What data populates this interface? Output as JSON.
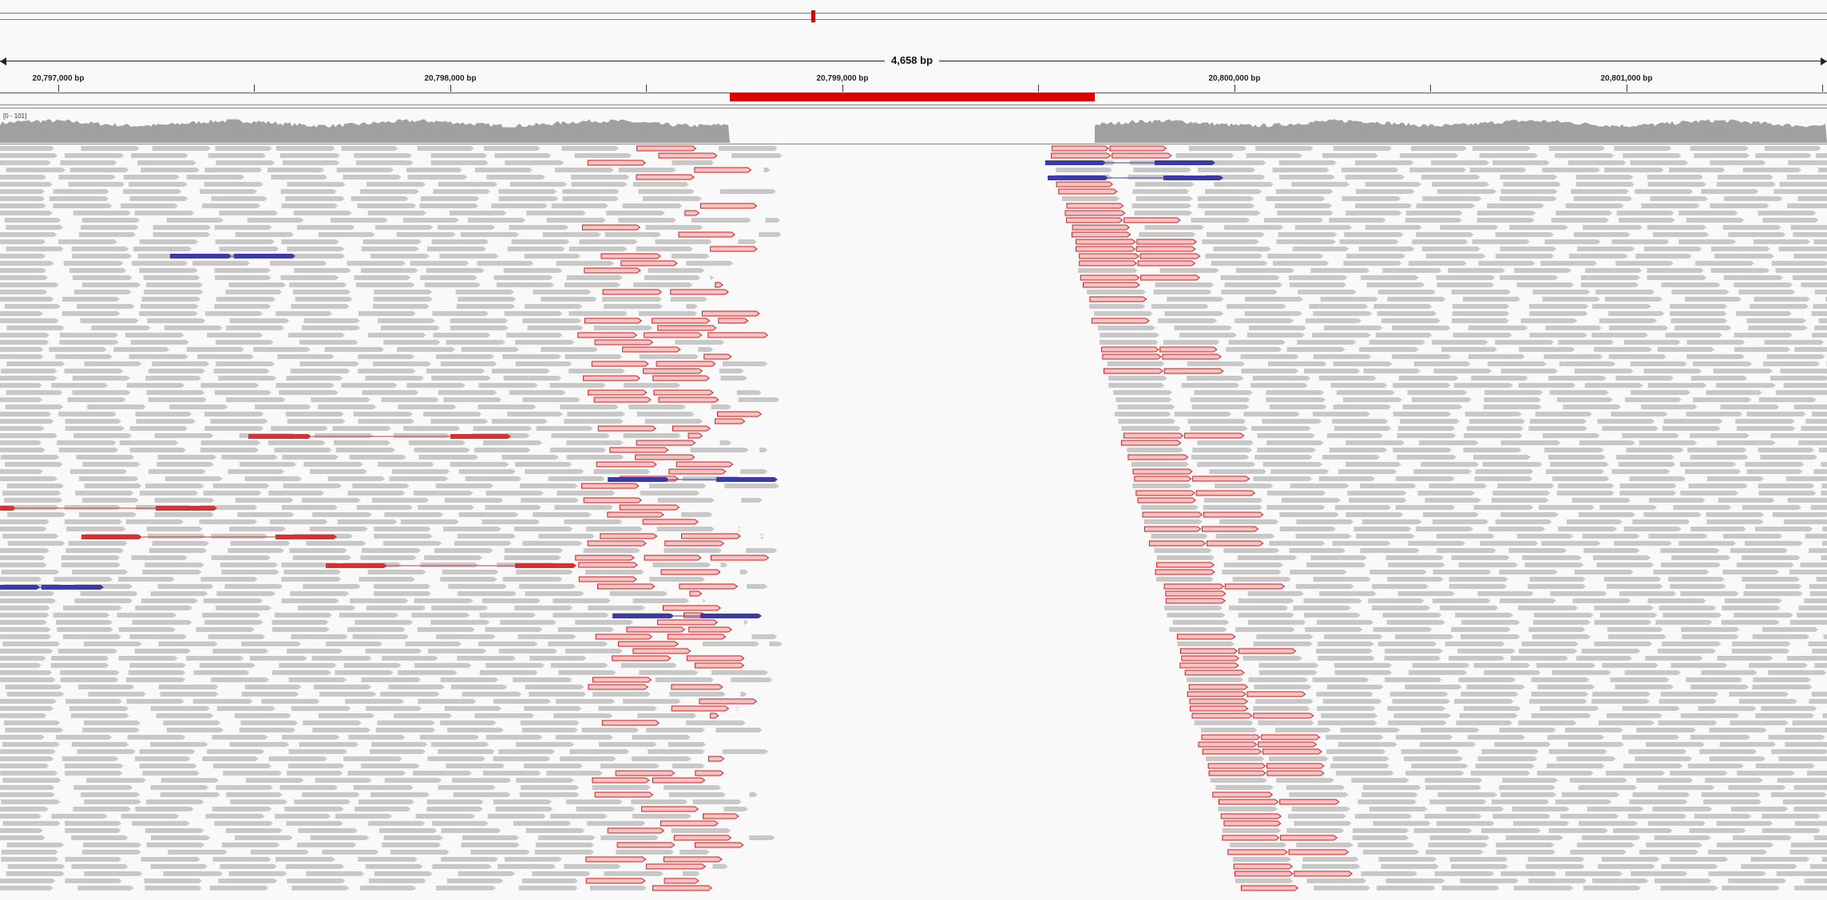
{
  "locus": {
    "span_label": "4,658 bp"
  },
  "ruler": {
    "labels": [
      "20,797,000 bp",
      "20,798,000 bp",
      "20,799,000 bp",
      "20,800,000 bp",
      "20,801,000 bp"
    ]
  },
  "coverage": {
    "range_label": "[0 - 101]"
  },
  "colors": {
    "read_default": "#c8c8c8",
    "read_insert_large": "#d03535",
    "read_inversion": "#3a3aa8",
    "soft_clip": "#ff66cc",
    "region_of_interest": "#d80000",
    "coverage_fill": "#a0a0a0"
  }
}
